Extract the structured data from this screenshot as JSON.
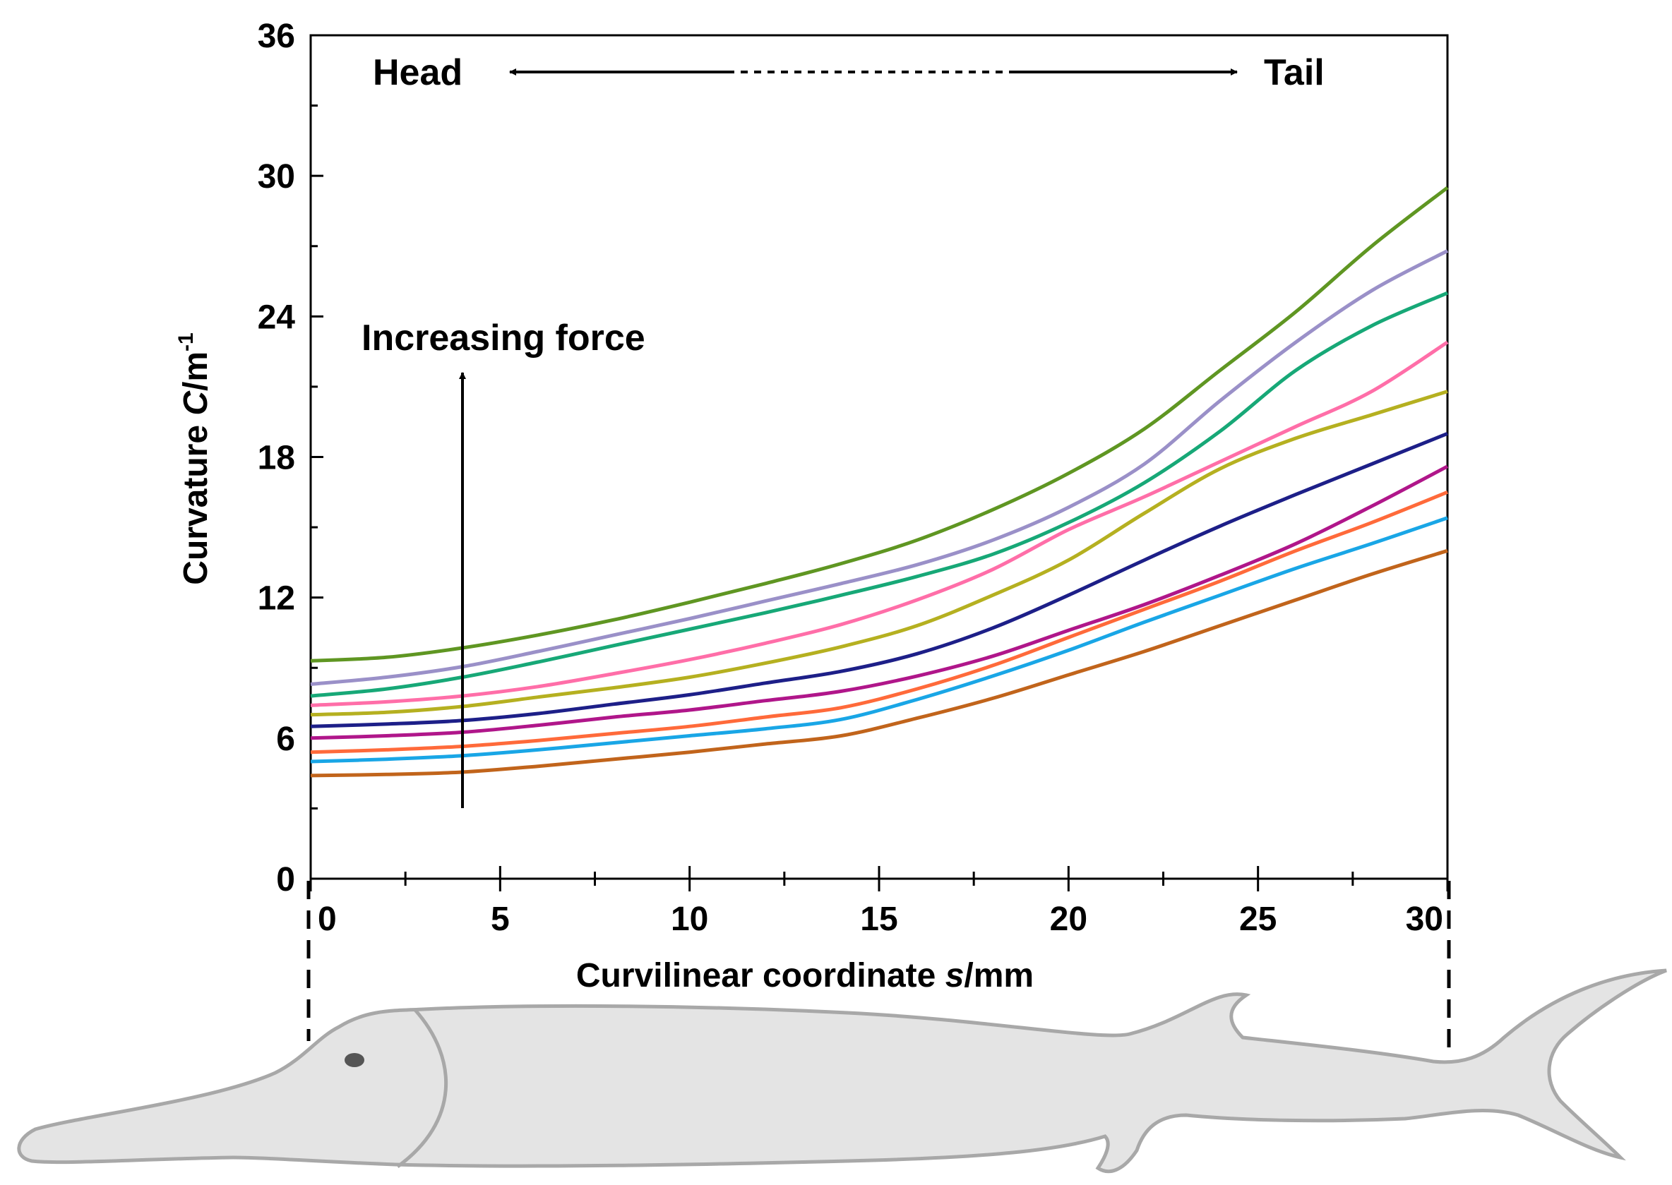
{
  "chart_data": {
    "type": "line",
    "xlabel_prefix": "Curvilinear coordinate ",
    "xlabel_var": "s",
    "xlabel_unit": "/mm",
    "ylabel_prefix": "Curvature ",
    "ylabel_var": "C",
    "ylabel_unit": "/m",
    "ylabel_sup": "-1",
    "xlim": [
      0,
      30
    ],
    "ylim": [
      0,
      36
    ],
    "xticks": [
      0,
      5,
      10,
      15,
      20,
      25,
      30
    ],
    "yticks": [
      0,
      6,
      12,
      18,
      24,
      30,
      36
    ],
    "grid": false,
    "legend": "none",
    "annotations": {
      "head": "Head",
      "tail": "Tail",
      "increasing_force": "Increasing force"
    },
    "x": [
      0,
      2,
      4,
      6,
      8,
      10,
      12,
      14,
      16,
      18,
      20,
      22,
      24,
      26,
      28,
      30
    ],
    "series": [
      {
        "color": "#c1641b",
        "values": [
          4.4,
          4.45,
          4.55,
          4.8,
          5.1,
          5.4,
          5.75,
          6.1,
          6.85,
          7.7,
          8.7,
          9.7,
          10.8,
          11.9,
          13.0,
          14.0
        ]
      },
      {
        "color": "#19a6e6",
        "values": [
          5.0,
          5.1,
          5.25,
          5.5,
          5.8,
          6.1,
          6.4,
          6.8,
          7.65,
          8.65,
          9.75,
          10.95,
          12.1,
          13.25,
          14.3,
          15.4
        ]
      },
      {
        "color": "#ff6a3a",
        "values": [
          5.4,
          5.5,
          5.65,
          5.9,
          6.2,
          6.5,
          6.9,
          7.3,
          8.1,
          9.1,
          10.3,
          11.5,
          12.7,
          14.0,
          15.2,
          16.5
        ]
      },
      {
        "color": "#b0168a",
        "values": [
          6.0,
          6.1,
          6.25,
          6.55,
          6.9,
          7.2,
          7.6,
          8.0,
          8.65,
          9.5,
          10.6,
          11.7,
          12.95,
          14.3,
          15.9,
          17.6
        ]
      },
      {
        "color": "#1d1f88",
        "values": [
          6.5,
          6.6,
          6.75,
          7.05,
          7.45,
          7.85,
          8.35,
          8.85,
          9.6,
          10.7,
          12.1,
          13.6,
          15.05,
          16.4,
          17.7,
          19.0
        ]
      },
      {
        "color": "#b5b020",
        "values": [
          7.0,
          7.1,
          7.35,
          7.75,
          8.15,
          8.6,
          9.2,
          9.9,
          10.8,
          12.1,
          13.6,
          15.6,
          17.5,
          18.8,
          19.8,
          20.8
        ]
      },
      {
        "color": "#ff6ea8",
        "values": [
          7.4,
          7.55,
          7.8,
          8.2,
          8.75,
          9.35,
          10.05,
          10.85,
          11.9,
          13.2,
          14.9,
          16.3,
          17.8,
          19.3,
          20.8,
          22.9
        ]
      },
      {
        "color": "#17a877",
        "values": [
          7.8,
          8.1,
          8.6,
          9.25,
          9.95,
          10.65,
          11.35,
          12.1,
          12.9,
          13.85,
          15.2,
          16.9,
          19.1,
          21.7,
          23.6,
          25.0
        ]
      },
      {
        "color": "#9a90c8",
        "values": [
          8.3,
          8.6,
          9.05,
          9.7,
          10.4,
          11.1,
          11.85,
          12.6,
          13.4,
          14.45,
          15.85,
          17.7,
          20.4,
          22.9,
          25.1,
          26.8
        ]
      },
      {
        "color": "#5f9622",
        "values": [
          9.3,
          9.45,
          9.85,
          10.4,
          11.05,
          11.8,
          12.6,
          13.45,
          14.45,
          15.75,
          17.3,
          19.2,
          21.7,
          24.2,
          27.0,
          29.5
        ]
      }
    ]
  }
}
